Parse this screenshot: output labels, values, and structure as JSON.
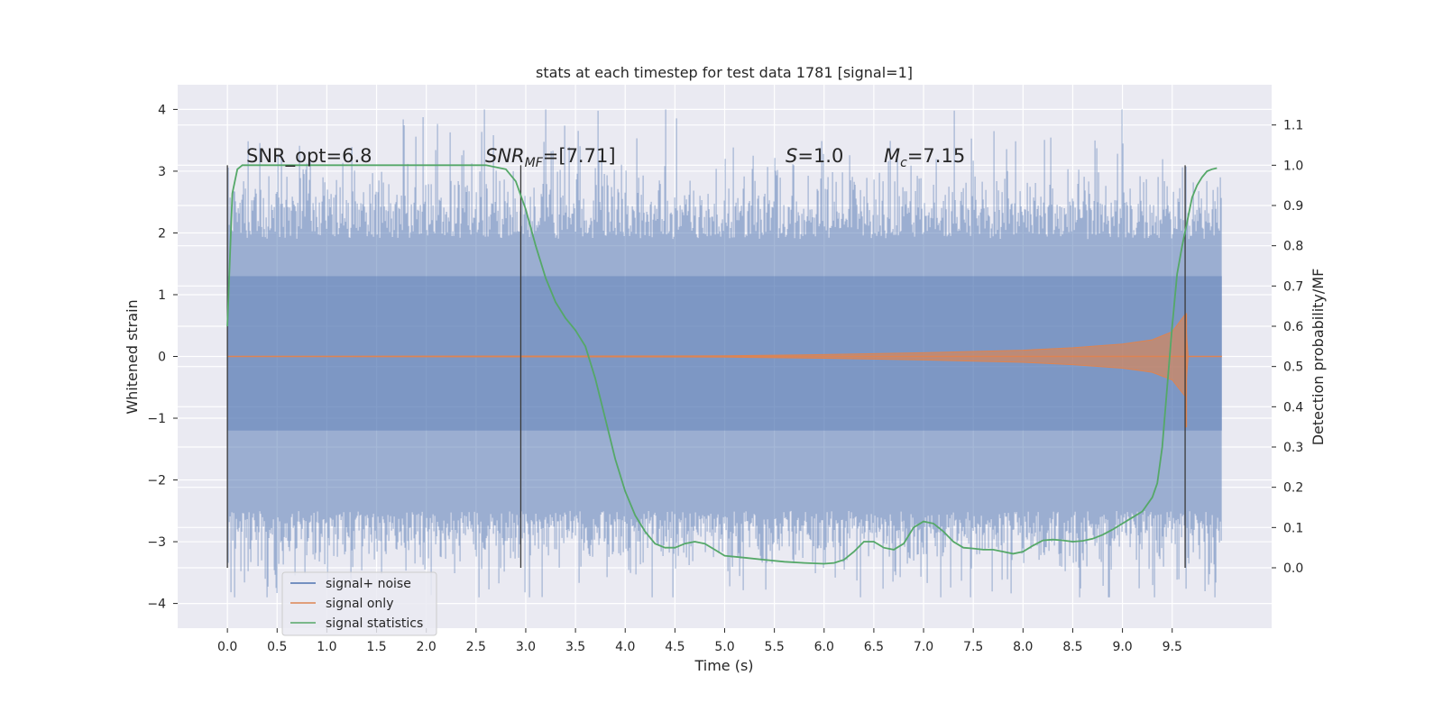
{
  "chart_data": {
    "type": "line",
    "title": "stats at each timestep for test data 1781 [signal=1]",
    "xlabel": "Time (s)",
    "ylabel_left": "Whitened strain",
    "ylabel_right": "Detection probability/MF",
    "xlim": [
      -0.5,
      10.5
    ],
    "ylim_left": [
      -4.4,
      4.4
    ],
    "ylim_right": [
      -0.15,
      1.2
    ],
    "x_ticks": [
      "0.0",
      "0.5",
      "1.0",
      "1.5",
      "2.0",
      "2.5",
      "3.0",
      "3.5",
      "4.0",
      "4.5",
      "5.0",
      "5.5",
      "6.0",
      "6.5",
      "7.0",
      "7.5",
      "8.0",
      "8.5",
      "9.0",
      "9.5"
    ],
    "y_left_ticks": [
      "−4",
      "−3",
      "−2",
      "−1",
      "0",
      "1",
      "2",
      "3",
      "4"
    ],
    "y_right_ticks": [
      "0.0",
      "0.1",
      "0.2",
      "0.3",
      "0.4",
      "0.5",
      "0.6",
      "0.7",
      "0.8",
      "0.9",
      "1.0",
      "1.1"
    ],
    "grid": true,
    "legend_position": "lower-left",
    "annotations": {
      "snr_opt": "SNR_opt=6.8",
      "snr_mf_main": "SNR",
      "snr_mf_sub": "MF",
      "snr_mf_tail": "=[7.71]",
      "s_var": "S",
      "s_tail": "=1.0",
      "mc_main": "M",
      "mc_sub": "c",
      "mc_tail": "=7.15"
    },
    "vertical_markers": [
      0.0,
      2.95,
      9.63
    ],
    "series": [
      {
        "name": "signal+ noise",
        "color": "#4c72b0",
        "kind": "noise-band",
        "x_range": [
          0.0,
          10.0
        ],
        "band": [
          -2.5,
          1.9
        ],
        "peak": 4.0,
        "trough": -3.9
      },
      {
        "name": "signal only",
        "color": "#dd8452",
        "kind": "chirp",
        "x": [
          0.0,
          5.0,
          6.0,
          7.0,
          8.0,
          8.5,
          9.0,
          9.3,
          9.5,
          9.63,
          9.66
        ],
        "envelope": [
          0.0,
          0.01,
          0.03,
          0.06,
          0.1,
          0.14,
          0.2,
          0.27,
          0.4,
          0.68,
          0.0
        ]
      },
      {
        "name": "signal statistics",
        "color": "#55a868",
        "kind": "line",
        "axis": "right",
        "x": [
          0.0,
          0.05,
          0.1,
          0.15,
          0.2,
          0.3,
          0.5,
          1.0,
          1.5,
          2.0,
          2.4,
          2.6,
          2.8,
          2.9,
          3.0,
          3.1,
          3.2,
          3.3,
          3.4,
          3.5,
          3.6,
          3.7,
          3.8,
          3.9,
          4.0,
          4.1,
          4.2,
          4.3,
          4.4,
          4.5,
          4.6,
          4.7,
          4.8,
          4.9,
          5.0,
          5.2,
          5.4,
          5.6,
          5.8,
          6.0,
          6.1,
          6.2,
          6.3,
          6.4,
          6.5,
          6.6,
          6.7,
          6.8,
          6.9,
          7.0,
          7.1,
          7.2,
          7.3,
          7.4,
          7.5,
          7.6,
          7.7,
          7.8,
          7.9,
          8.0,
          8.1,
          8.2,
          8.3,
          8.4,
          8.5,
          8.6,
          8.7,
          8.8,
          8.9,
          9.0,
          9.1,
          9.2,
          9.3,
          9.35,
          9.4,
          9.45,
          9.5,
          9.55,
          9.6,
          9.65,
          9.7,
          9.75,
          9.8,
          9.85,
          9.9,
          9.95
        ],
        "values": [
          0.6,
          0.93,
          0.99,
          1.0,
          1.0,
          1.0,
          1.0,
          1.0,
          1.0,
          1.0,
          1.0,
          1.0,
          0.99,
          0.96,
          0.89,
          0.8,
          0.72,
          0.66,
          0.62,
          0.59,
          0.55,
          0.47,
          0.37,
          0.27,
          0.19,
          0.13,
          0.09,
          0.06,
          0.05,
          0.05,
          0.06,
          0.065,
          0.06,
          0.045,
          0.03,
          0.025,
          0.02,
          0.015,
          0.012,
          0.01,
          0.012,
          0.02,
          0.04,
          0.065,
          0.065,
          0.05,
          0.045,
          0.06,
          0.1,
          0.115,
          0.11,
          0.09,
          0.065,
          0.05,
          0.048,
          0.045,
          0.045,
          0.04,
          0.035,
          0.04,
          0.055,
          0.068,
          0.07,
          0.068,
          0.065,
          0.067,
          0.072,
          0.082,
          0.095,
          0.11,
          0.125,
          0.14,
          0.175,
          0.21,
          0.3,
          0.45,
          0.6,
          0.73,
          0.8,
          0.86,
          0.92,
          0.95,
          0.97,
          0.985,
          0.99,
          0.993
        ]
      }
    ]
  }
}
